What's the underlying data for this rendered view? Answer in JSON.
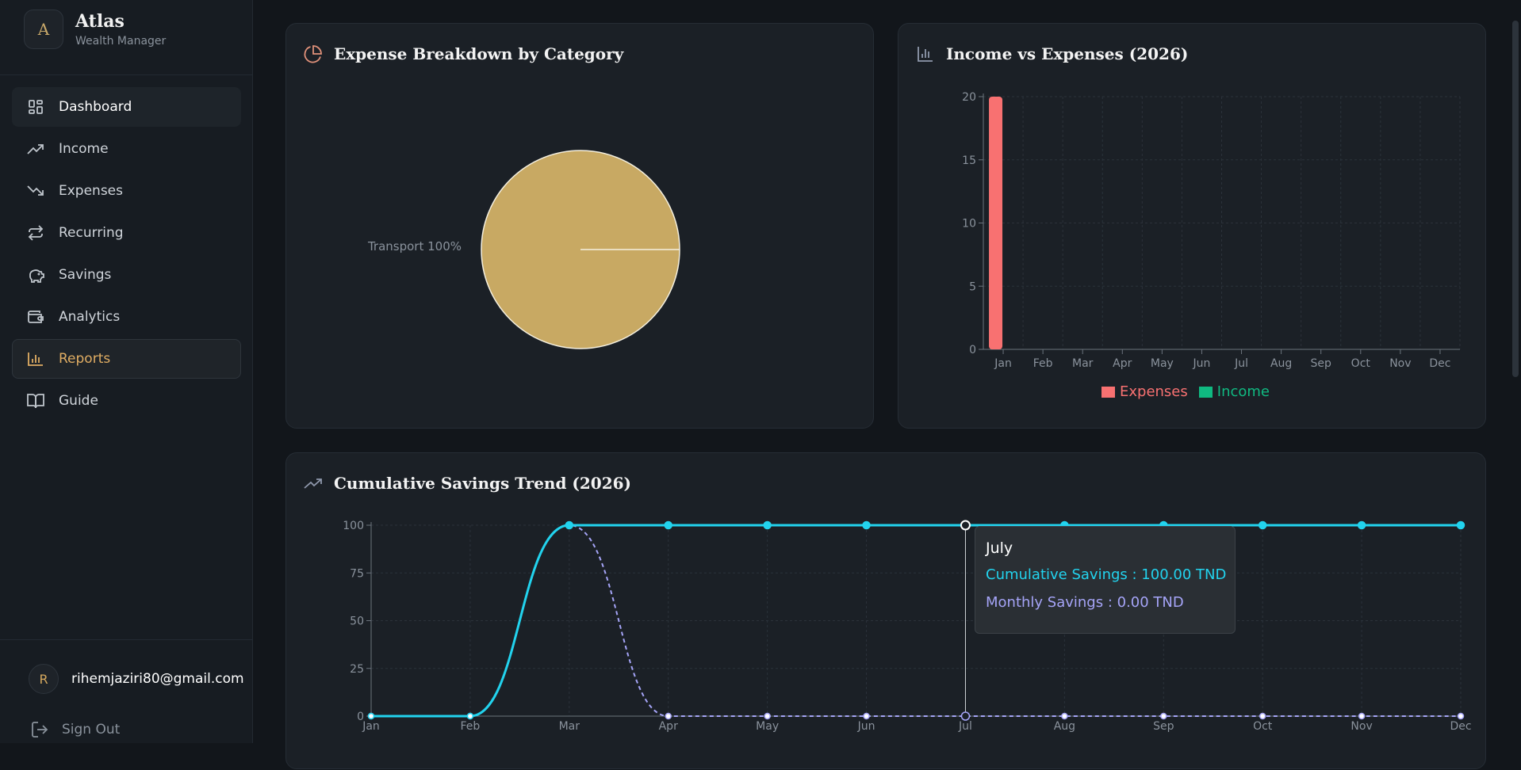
{
  "brand": {
    "logo_letter": "A",
    "name": "Atlas",
    "subtitle": "Wealth Manager"
  },
  "nav": {
    "items": [
      {
        "label": "Dashboard",
        "icon": "dashboard-grid-icon"
      },
      {
        "label": "Income",
        "icon": "trending-up-icon"
      },
      {
        "label": "Expenses",
        "icon": "trending-down-icon"
      },
      {
        "label": "Recurring",
        "icon": "repeat-icon"
      },
      {
        "label": "Savings",
        "icon": "piggy-bank-icon"
      },
      {
        "label": "Analytics",
        "icon": "wallet-icon"
      },
      {
        "label": "Reports",
        "icon": "bar-chart-icon"
      },
      {
        "label": "Guide",
        "icon": "book-open-icon"
      }
    ]
  },
  "user": {
    "initial": "R",
    "email": "rihemjaziri80@gmail.com"
  },
  "signout_label": "Sign Out",
  "colors": {
    "accent": "#e0ad63",
    "pie": "#c8a963",
    "expenses": "#f87171",
    "income": "#10b981",
    "cumulative": "#22d3ee",
    "monthly": "#a5a4f7"
  },
  "expense_card": {
    "title": "Expense Breakdown by Category",
    "icon": "pie-chart-icon"
  },
  "income_card": {
    "title": "Income vs Expenses (2026)",
    "icon": "bar-chart-icon"
  },
  "savings_card": {
    "title": "Cumulative Savings Trend (2026)",
    "icon": "trending-up-icon"
  },
  "chart_data": [
    {
      "type": "pie",
      "slices": [
        {
          "label": "Transport",
          "value": 100,
          "display": "Transport 100%"
        }
      ]
    },
    {
      "type": "bar",
      "categories": [
        "Jan",
        "Feb",
        "Mar",
        "Apr",
        "May",
        "Jun",
        "Jul",
        "Aug",
        "Sep",
        "Oct",
        "Nov",
        "Dec"
      ],
      "series": [
        {
          "name": "Expenses",
          "values": [
            20,
            0,
            0,
            0,
            0,
            0,
            0,
            0,
            0,
            0,
            0,
            0
          ]
        },
        {
          "name": "Income",
          "values": [
            0,
            0,
            0,
            0,
            0,
            0,
            0,
            0,
            0,
            0,
            0,
            0
          ]
        }
      ],
      "yticks": [
        0,
        5,
        10,
        15,
        20
      ],
      "ylim": [
        0,
        20
      ],
      "grid": true,
      "legend": "bottom-center"
    },
    {
      "type": "line",
      "categories": [
        "Jan",
        "Feb",
        "Mar",
        "Apr",
        "May",
        "Jun",
        "Jul",
        "Aug",
        "Sep",
        "Oct",
        "Nov",
        "Dec"
      ],
      "series": [
        {
          "name": "Cumulative Savings",
          "values": [
            0,
            0,
            100,
            100,
            100,
            100,
            100,
            100,
            100,
            100,
            100,
            100
          ]
        },
        {
          "name": "Monthly Savings",
          "values": [
            0,
            0,
            100,
            0,
            0,
            0,
            0,
            0,
            0,
            0,
            0,
            0
          ]
        }
      ],
      "yticks": [
        0,
        25,
        50,
        75,
        100
      ],
      "ylim": [
        0,
        100
      ],
      "grid": true,
      "tooltip": {
        "title": "July",
        "rows": [
          "Cumulative Savings : 100.00 TND",
          "Monthly Savings : 0.00 TND"
        ]
      }
    }
  ]
}
